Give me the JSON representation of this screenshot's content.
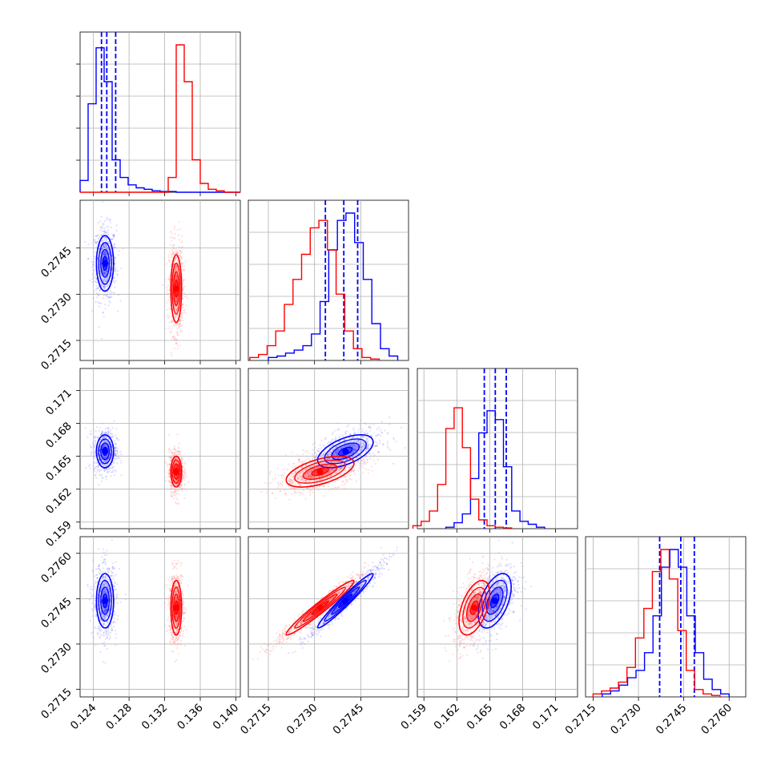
{
  "chart_data": {
    "type": "corner",
    "title": "",
    "grid": true,
    "colors": {
      "blue": "#0000ff",
      "red": "#ff0000"
    },
    "parameters": [
      {
        "index": 0,
        "range": [
          0.1225,
          0.1405
        ],
        "ticks": [
          "0.124",
          "0.128",
          "0.132",
          "0.136",
          "0.140"
        ],
        "tick_values": [
          0.124,
          0.128,
          0.132,
          0.136,
          0.14
        ]
      },
      {
        "index": 1,
        "range": [
          0.27085,
          0.27605
        ],
        "ticks": [
          "0.2715",
          "0.2730",
          "0.2745"
        ],
        "tick_values": [
          0.2715,
          0.273,
          0.2745
        ]
      },
      {
        "index": 2,
        "range": [
          0.1584,
          0.173
        ],
        "ticks": [
          "0.159",
          "0.162",
          "0.165",
          "0.168",
          "0.171"
        ],
        "tick_values": [
          0.159,
          0.162,
          0.165,
          0.168,
          0.171
        ]
      },
      {
        "index": 3,
        "range": [
          0.27125,
          0.27655
        ],
        "ticks": [
          "0.2715",
          "0.2730",
          "0.2745",
          "0.2760"
        ],
        "tick_values": [
          0.2715,
          0.273,
          0.2745,
          0.276
        ]
      }
    ],
    "series": [
      {
        "color": "#0000ff",
        "mean": [
          0.1253,
          0.274,
          0.16545,
          0.27443
        ],
        "std": [
          0.00048,
          0.00045,
          0.00075,
          0.00045
        ],
        "quantiles": [
          [
            0.1249,
            0.1255,
            0.1265
          ],
          [
            0.27335,
            0.27395,
            0.2744
          ],
          [
            0.1645,
            0.1655,
            0.1665
          ],
          [
            0.2737,
            0.2744,
            0.27485
          ]
        ],
        "histograms": [
          {
            "edges": [
              0.1225,
              0.1405
            ],
            "counts": [
              0.08,
              0.6,
              0.98,
              0.75,
              0.22,
              0.1,
              0.05,
              0.03,
              0.02,
              0.01,
              0.005,
              0.005,
              0,
              0,
              0,
              0,
              0,
              0,
              0,
              0
            ]
          },
          {
            "edges": [
              0.2715,
              0.2757
            ],
            "counts": [
              0.02,
              0.03,
              0.05,
              0.07,
              0.1,
              0.18,
              0.4,
              0.75,
              0.95,
              1.0,
              0.8,
              0.55,
              0.25,
              0.08,
              0.03
            ]
          },
          {
            "edges": [
              0.161,
              0.17
            ],
            "counts": [
              0.01,
              0.04,
              0.1,
              0.34,
              0.65,
              0.8,
              0.74,
              0.42,
              0.12,
              0.05,
              0.03,
              0.01
            ]
          },
          {
            "edges": [
              0.2718,
              0.276
            ],
            "counts": [
              0.02,
              0.04,
              0.08,
              0.13,
              0.18,
              0.3,
              0.55,
              0.88,
              1.0,
              0.88,
              0.55,
              0.3,
              0.12,
              0.05,
              0.02
            ]
          }
        ]
      },
      {
        "color": "#ff0000",
        "mean": [
          0.1333,
          0.27318,
          0.1636,
          0.2742
        ],
        "std": [
          0.0003,
          0.00055,
          0.0007,
          0.00045
        ],
        "quantiles": [],
        "histograms": [
          {
            "edges": [
              0.1225,
              0.1405
            ],
            "counts": [
              0,
              0,
              0,
              0,
              0,
              0,
              0,
              0,
              0,
              0,
              0,
              0.1,
              1.0,
              0.75,
              0.22,
              0.06,
              0.02,
              0.01,
              0,
              0
            ]
          },
          {
            "edges": [
              0.2709,
              0.2751
            ],
            "counts": [
              0.02,
              0.04,
              0.1,
              0.2,
              0.38,
              0.55,
              0.72,
              0.9,
              0.95,
              0.75,
              0.45,
              0.2,
              0.08,
              0.02,
              0.01
            ]
          },
          {
            "edges": [
              0.158,
              0.167
            ],
            "counts": [
              0.02,
              0.05,
              0.12,
              0.3,
              0.68,
              0.82,
              0.55,
              0.2,
              0.06,
              0.02,
              0.01,
              0.005
            ]
          },
          {
            "edges": [
              0.2715,
              0.2757
            ],
            "counts": [
              0.02,
              0.04,
              0.06,
              0.1,
              0.2,
              0.4,
              0.6,
              0.85,
              1.0,
              0.8,
              0.45,
              0.18,
              0.05,
              0.02,
              0.01
            ]
          }
        ]
      }
    ],
    "correlations": {
      "1-0": 0.0,
      "2-0": 0.0,
      "2-1": 0.55,
      "3-0": 0.0,
      "3-1": 0.97,
      "3-2": 0.5
    }
  }
}
